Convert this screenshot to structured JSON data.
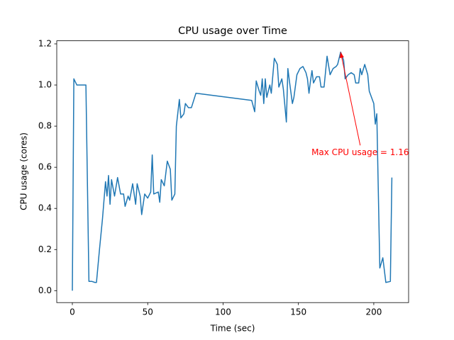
{
  "chart_data": {
    "type": "line",
    "title": "CPU usage over Time",
    "xlabel": "Time (sec)",
    "ylabel": "CPU usage (cores)",
    "x": [
      0,
      1,
      3,
      9,
      11,
      13,
      15,
      16,
      18,
      20,
      22,
      23,
      24,
      25,
      26,
      28,
      30,
      32,
      34,
      35,
      37,
      38,
      40,
      42,
      43,
      45,
      46,
      48,
      50,
      52,
      53,
      54,
      57,
      58,
      59,
      61,
      63,
      65,
      66,
      68,
      69,
      71,
      72,
      74,
      75,
      77,
      79,
      82,
      119,
      121,
      122,
      124,
      125,
      126,
      127,
      128,
      129,
      130,
      131,
      132,
      134,
      136,
      137,
      139,
      140,
      142,
      143,
      144,
      146,
      147,
      149,
      151,
      153,
      155,
      156,
      157,
      158,
      159,
      160,
      162,
      164,
      165,
      167,
      169,
      171,
      173,
      175,
      176,
      178,
      180,
      181,
      183,
      185,
      187,
      188,
      190,
      191,
      192,
      194,
      196,
      197,
      199,
      200,
      201,
      202,
      204,
      206,
      208,
      211,
      212
    ],
    "values": [
      0.0,
      1.03,
      1.0,
      1.0,
      0.045,
      0.045,
      0.04,
      0.04,
      0.2,
      0.35,
      0.53,
      0.46,
      0.56,
      0.42,
      0.54,
      0.46,
      0.55,
      0.47,
      0.47,
      0.41,
      0.46,
      0.44,
      0.52,
      0.42,
      0.52,
      0.46,
      0.37,
      0.47,
      0.45,
      0.48,
      0.66,
      0.47,
      0.48,
      0.43,
      0.54,
      0.51,
      0.63,
      0.59,
      0.44,
      0.47,
      0.8,
      0.93,
      0.84,
      0.86,
      0.91,
      0.89,
      0.89,
      0.96,
      0.925,
      0.87,
      1.02,
      0.97,
      0.95,
      1.03,
      0.91,
      1.03,
      0.94,
      0.97,
      1.0,
      0.96,
      1.13,
      1.1,
      0.99,
      1.03,
      0.98,
      0.82,
      1.08,
      1.02,
      0.91,
      0.94,
      1.05,
      1.08,
      1.09,
      1.06,
      1.03,
      0.96,
      1.02,
      1.07,
      1.01,
      1.04,
      1.04,
      0.99,
      0.99,
      1.14,
      1.05,
      1.08,
      1.09,
      1.1,
      1.16,
      1.12,
      1.03,
      1.05,
      1.06,
      1.05,
      1.01,
      1.01,
      1.08,
      1.05,
      1.1,
      1.05,
      0.97,
      0.93,
      0.91,
      0.81,
      0.86,
      0.11,
      0.16,
      0.04,
      0.045,
      0.55
    ],
    "color": "#1f77b4",
    "xlim": [
      -10.35,
      223.1
    ],
    "ylim": [
      -0.058,
      1.215
    ],
    "xticks": [
      0,
      50,
      100,
      150,
      200
    ],
    "yticks": [
      {
        "value": 0,
        "label": "0.0"
      },
      {
        "value": 0.2,
        "label": "0.2"
      },
      {
        "value": 0.4,
        "label": "0.4"
      },
      {
        "value": 0.6,
        "label": "0.6"
      },
      {
        "value": 0.8,
        "label": "0.8"
      },
      {
        "value": 1.0,
        "label": "1.0"
      },
      {
        "value": 1.2,
        "label": "1.2"
      }
    ],
    "annotation": {
      "text": "Max CPU usage = 1.16",
      "xy": [
        178,
        1.16
      ],
      "xytext": [
        191,
        0.672
      ],
      "color": "#ff0000"
    },
    "grid": false
  }
}
